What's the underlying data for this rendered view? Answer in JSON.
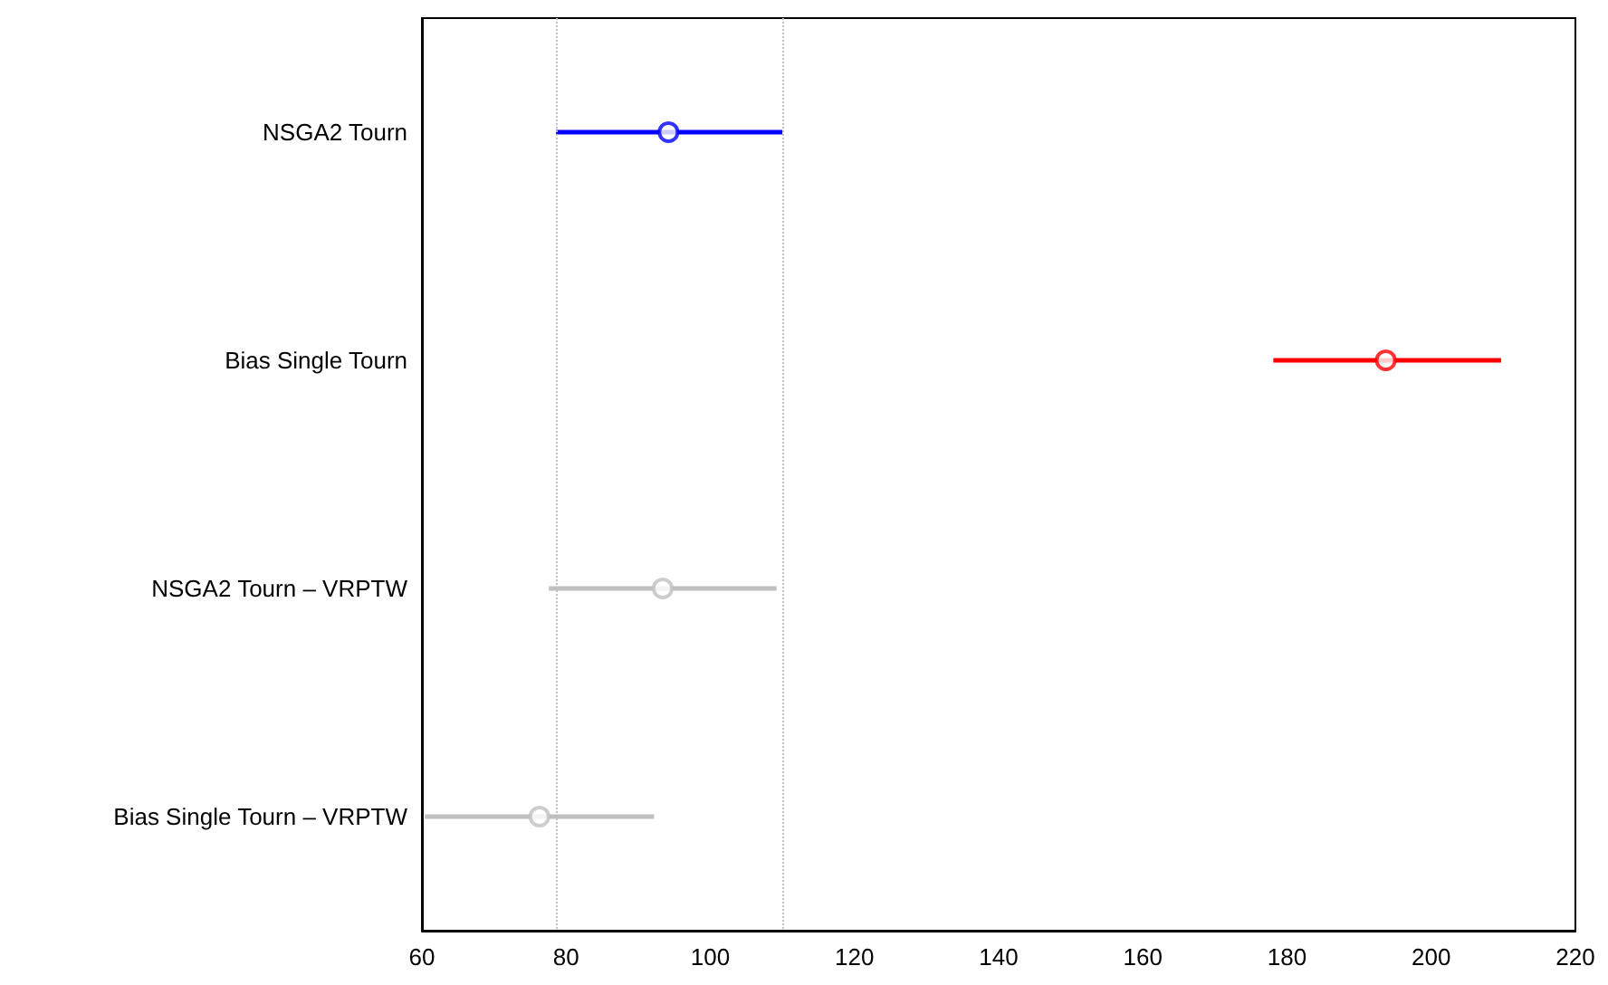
{
  "chart_data": {
    "type": "scatter",
    "orientation": "horizontal",
    "categories": [
      "NSGA2 Tourn",
      "Bias Single Tourn",
      "NSGA2 Tourn – VRPTW",
      "Bias Single Tourn – VRPTW"
    ],
    "values": [
      94.2,
      193.7,
      93.4,
      76.3
    ],
    "colors": [
      "#0000ff",
      "#ff0000",
      "#c0c0c0",
      "#c0c0c0"
    ],
    "errors": [
      [
        78.6,
        110.0
      ],
      [
        178.1,
        209.7
      ],
      [
        77.6,
        109.2
      ],
      [
        60.4,
        92.2
      ]
    ],
    "xlim": [
      60,
      220
    ],
    "xticks": [
      60,
      80,
      100,
      120,
      140,
      160,
      180,
      200,
      220
    ],
    "marker": "circle",
    "grid": false,
    "ref_lines": [
      {
        "axis": "x",
        "value": 78.6,
        "color": "#c0c0c0",
        "line_style": "dotted"
      },
      {
        "axis": "x",
        "value": 110.0,
        "color": "#c0c0c0",
        "line_style": "dotted"
      }
    ]
  }
}
